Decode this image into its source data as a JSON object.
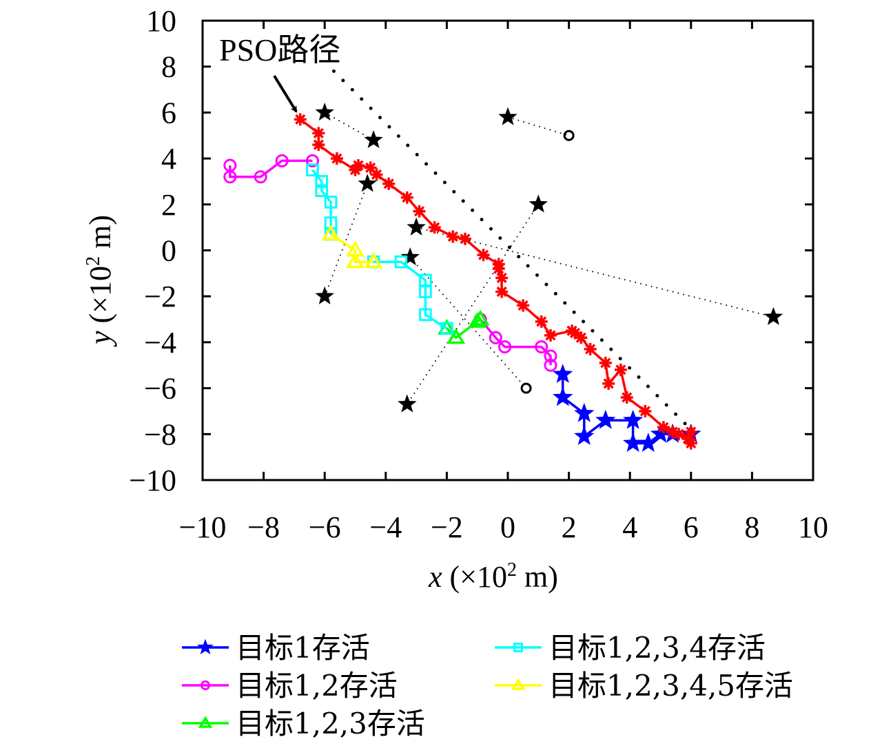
{
  "chart_data": {
    "type": "line",
    "title": "",
    "xlabel": "x (×10² m)",
    "ylabel": "y (×10² m)",
    "xlabel_var": "x",
    "xlabel_unit": " (×10",
    "xlabel_sup": "2",
    "xlabel_tail": " m)",
    "ylabel_var": "y",
    "ylabel_unit": " (×10",
    "ylabel_sup": "2",
    "ylabel_tail": " m)",
    "xlim": [
      -10,
      10
    ],
    "ylim": [
      -10,
      10
    ],
    "xticks": [
      -10,
      -8,
      -6,
      -4,
      -2,
      0,
      2,
      4,
      6,
      8,
      10
    ],
    "yticks": [
      -10,
      -8,
      -6,
      -4,
      -2,
      0,
      2,
      4,
      6,
      8,
      10
    ],
    "xtick_labels": [
      "−10",
      "−8",
      "−6",
      "−4",
      "−2",
      "0",
      "2",
      "4",
      "6",
      "8",
      "10"
    ],
    "ytick_labels": [
      "−10",
      "−8",
      "−6",
      "−4",
      "−2",
      "0",
      "2",
      "4",
      "6",
      "8",
      "10"
    ],
    "grid": false,
    "legend_placement": "bottom",
    "annotation": {
      "text": "PSO路径",
      "points_to": [
        -6.8,
        5.7
      ]
    },
    "pso_path": {
      "name": "PSO路径",
      "color": "#ff0000",
      "marker": "asterisk",
      "x": [
        -6.8,
        -6.2,
        -6.2,
        -5.6,
        -5.0,
        -4.9,
        -4.5,
        -4.3,
        -3.9,
        -3.3,
        -2.9,
        -2.4,
        -1.8,
        -1.4,
        -0.8,
        -0.3,
        -0.3,
        -0.2,
        -0.2,
        0.5,
        1.1,
        1.4,
        2.1,
        2.2,
        2.4,
        2.7,
        3.2,
        3.3,
        3.7,
        3.9,
        4.5,
        5.1,
        5.4,
        5.6,
        5.9,
        6.0,
        6.0
      ],
      "y": [
        5.7,
        5.1,
        4.6,
        4.0,
        3.5,
        3.7,
        3.6,
        3.3,
        2.9,
        2.3,
        1.7,
        1.0,
        0.6,
        0.5,
        -0.2,
        -0.6,
        -0.8,
        -1.2,
        -1.8,
        -2.4,
        -3.1,
        -3.7,
        -3.5,
        -3.6,
        -3.8,
        -4.3,
        -4.9,
        -5.8,
        -5.2,
        -6.4,
        -7.0,
        -7.7,
        -7.9,
        -8.0,
        -8.2,
        -7.9,
        -8.4
      ]
    },
    "series": [
      {
        "name": "目标1存活",
        "color": "#0000ff",
        "marker": "star",
        "x": [
          1.8,
          1.8,
          2.5,
          2.5,
          3.2,
          4.1,
          4.1,
          4.6,
          5.0,
          5.4,
          6.0
        ],
        "y": [
          -5.4,
          -6.4,
          -7.1,
          -8.1,
          -7.4,
          -7.4,
          -8.4,
          -8.4,
          -8.0,
          -8.0,
          -8.0
        ]
      },
      {
        "name": "目标1,2存活",
        "color": "#ff00ff",
        "marker": "circle",
        "x": [
          -9.1,
          -9.1,
          -8.1,
          -7.4,
          -6.4
        ],
        "y": [
          3.7,
          3.2,
          3.2,
          3.9,
          3.9
        ]
      },
      {
        "name": "目标1,2存活 (segment 2)",
        "color": "#ff00ff",
        "marker": "circle",
        "x": [
          -0.9,
          -0.4,
          -0.1,
          1.1,
          1.4,
          1.4
        ],
        "y": [
          -3.0,
          -3.8,
          -4.2,
          -4.2,
          -4.6,
          -5.0
        ]
      },
      {
        "name": "目标1,2,3存活",
        "color": "#00ff00",
        "marker": "triangle",
        "x": [
          -2.0,
          -1.7,
          -1.0,
          -0.9
        ],
        "y": [
          -3.4,
          -3.8,
          -3.1,
          -3.0
        ]
      },
      {
        "name": "目标1,2,3,4存活",
        "color": "#00ffff",
        "marker": "square",
        "x": [
          -6.4,
          -6.1,
          -6.1,
          -5.8,
          -5.8,
          -5.8
        ],
        "y": [
          3.5,
          3.0,
          2.6,
          2.1,
          1.2,
          0.7
        ]
      },
      {
        "name": "目标1,2,3,4存活 (segment 2)",
        "color": "#00ffff",
        "marker": "square",
        "x": [
          -4.4,
          -3.5,
          -2.7,
          -2.7,
          -2.7,
          -2.0
        ],
        "y": [
          -0.5,
          -0.5,
          -1.3,
          -1.8,
          -2.8,
          -3.4
        ]
      },
      {
        "name": "目标1,2,3,4,5存活",
        "color": "#ffff00",
        "marker": "triangle",
        "x": [
          -5.8,
          -5.0,
          -5.0,
          -4.4
        ],
        "y": [
          0.7,
          0.0,
          -0.5,
          -0.5
        ]
      }
    ],
    "targets": {
      "color": "#000000",
      "pairs": [
        {
          "start_circle": [
            -6.0,
            6.0
          ],
          "end_star": [
            -4.4,
            4.8
          ]
        },
        {
          "start_star": [
            0.0,
            5.8
          ],
          "end_circle": [
            2.0,
            5.0
          ]
        },
        {
          "start_circle": [
            -6.0,
            -2.0
          ],
          "end_star": [
            -4.6,
            2.9
          ]
        },
        {
          "start_circle": [
            -3.0,
            1.0
          ],
          "end_star": [
            8.7,
            -2.9
          ]
        },
        {
          "start_circle": [
            1.0,
            2.0
          ],
          "end_star": [
            -3.3,
            -6.7
          ]
        },
        {
          "start_star": [
            -3.2,
            -0.3
          ],
          "end_circle": [
            0.6,
            -6.0
          ]
        }
      ]
    },
    "reference_dotted_line": {
      "x": [
        -5.7,
        6.0
      ],
      "y": [
        7.8,
        -7.8
      ]
    },
    "legend": [
      {
        "label": "目标1存活",
        "color": "#0000ff",
        "marker": "star"
      },
      {
        "label": "目标1,2存活",
        "color": "#ff00ff",
        "marker": "circle"
      },
      {
        "label": "目标1,2,3存活",
        "color": "#00ff00",
        "marker": "triangle"
      },
      {
        "label": "目标1,2,3,4存活",
        "color": "#00ffff",
        "marker": "square"
      },
      {
        "label": "目标1,2,3,4,5存活",
        "color": "#ffff00",
        "marker": "triangle"
      }
    ]
  }
}
